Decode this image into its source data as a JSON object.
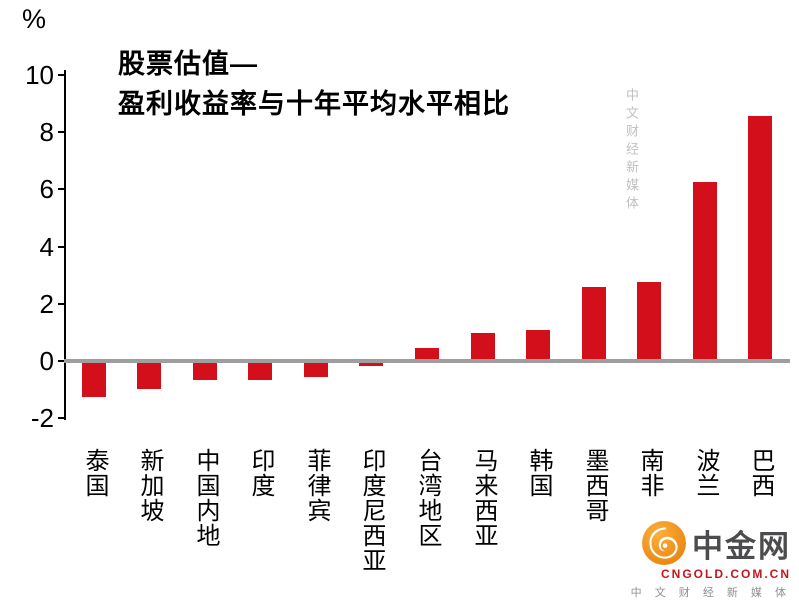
{
  "chart_data": {
    "type": "bar",
    "title_line1": "股票估值—",
    "title_line2": "盈利收益率与十年平均水平相比",
    "unit_label": "%",
    "categories": [
      "泰国",
      "新加坡",
      "中国内地",
      "印度",
      "菲律宾",
      "印度尼西亚",
      "台湾地区",
      "马来西亚",
      "韩国",
      "墨西哥",
      "南非",
      "波兰",
      "巴西"
    ],
    "values": [
      -1.2,
      -0.9,
      -0.6,
      -0.6,
      -0.5,
      -0.1,
      0.4,
      0.9,
      1.0,
      2.5,
      2.7,
      6.2,
      8.5
    ],
    "yticks": [
      10,
      8,
      6,
      4,
      2,
      0,
      -2
    ],
    "ylim": [
      -2,
      10
    ],
    "xlabel": "",
    "ylabel": "%",
    "grid": "off",
    "legend": "none",
    "bar_color": "#d20f1a",
    "zero_line_color": "#9e9e9e"
  },
  "watermark": {
    "vertical_text": "中文财经新媒体",
    "logo_name": "中金网",
    "logo_url": "CNGOLD.COM.CN",
    "logo_subtitle": "中 文 财 经 新 媒 体"
  }
}
